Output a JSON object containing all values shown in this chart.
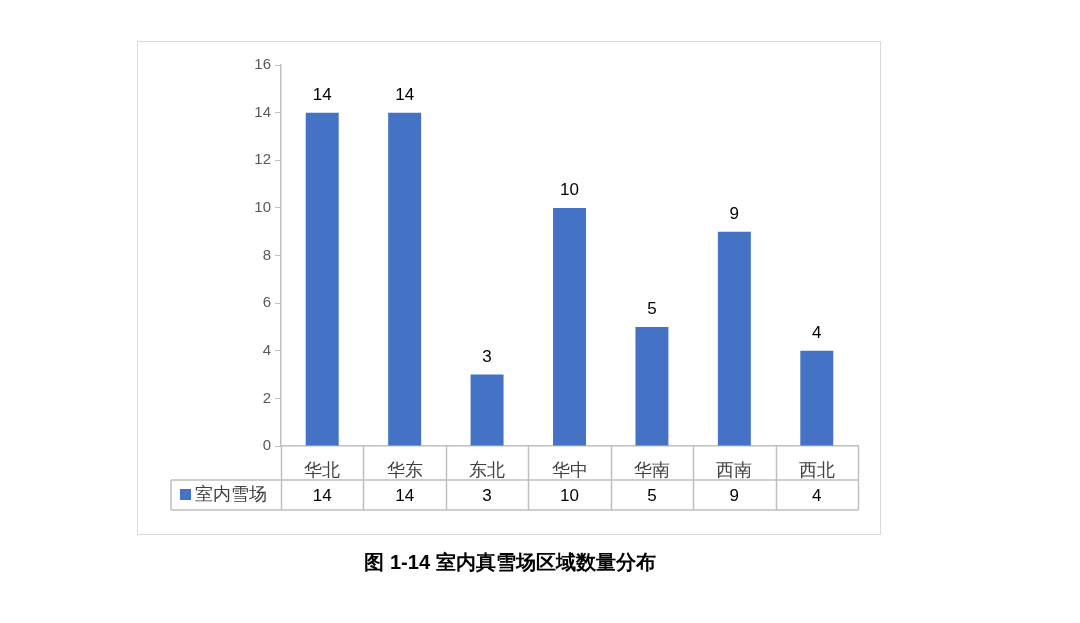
{
  "chart_data": {
    "type": "bar",
    "title": "图 1-14 室内真雪场区域数量分布",
    "categories": [
      "华北",
      "华东",
      "东北",
      "华中",
      "华南",
      "西南",
      "西北"
    ],
    "series": [
      {
        "name": "室内雪场",
        "color": "#4472c4",
        "values": [
          14,
          14,
          3,
          10,
          5,
          9,
          4
        ]
      }
    ],
    "totals": [
      "14",
      "14",
      "3",
      "10",
      "5",
      "9",
      "4"
    ],
    "ylim": [
      0,
      16
    ],
    "yticks": [
      0,
      2,
      4,
      6,
      8,
      10,
      12,
      14,
      16
    ],
    "grid": false,
    "legend": "bottom",
    "data_labels": true
  }
}
